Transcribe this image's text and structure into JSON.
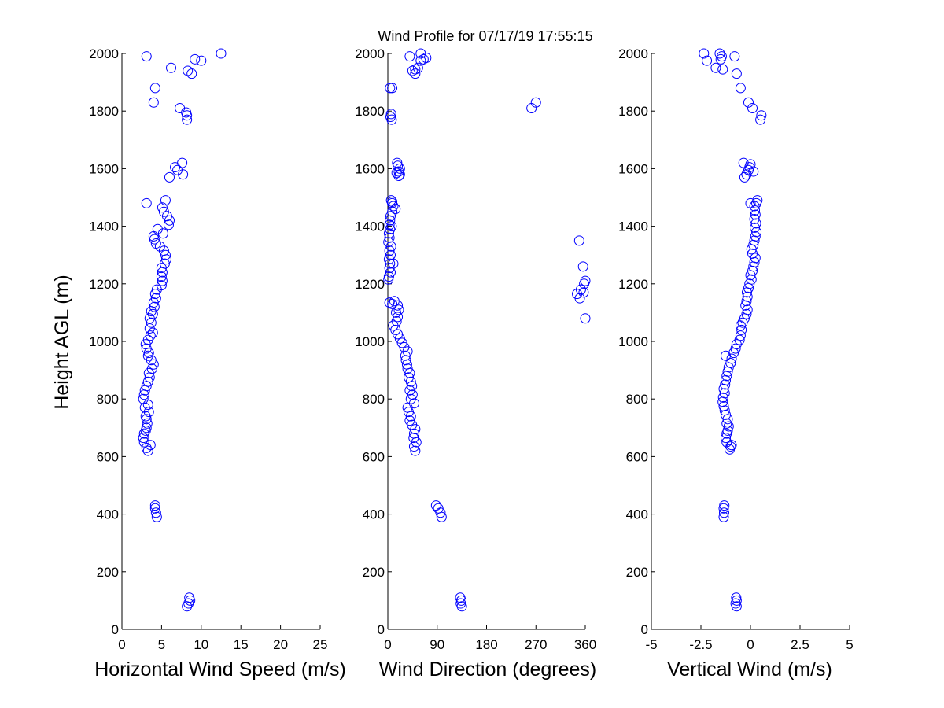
{
  "title": "Wind Profile for  07/17/19 17:55:15",
  "ylabel": "Height AGL (m)",
  "marker_color": "#0000ff",
  "chart_data": [
    {
      "type": "scatter",
      "id": "speed",
      "xlabel": "Horizontal Wind Speed (m/s)",
      "xlim": [
        0,
        25
      ],
      "ylim": [
        0,
        2000
      ],
      "xticks": [
        0,
        5,
        10,
        15,
        20,
        25
      ],
      "xtick_labels": [
        "0",
        "5",
        "10",
        "15",
        "20",
        "25"
      ],
      "yticks": [
        0,
        200,
        400,
        600,
        800,
        1000,
        1200,
        1400,
        1600,
        1800,
        2000
      ],
      "ytick_labels": [
        "0",
        "200",
        "400",
        "600",
        "800",
        "1000",
        "1200",
        "1400",
        "1600",
        "1800",
        "2000"
      ],
      "x": [
        8.2,
        8.4,
        8.6,
        8.5,
        4.4,
        4.3,
        4.2,
        4.2,
        3.3,
        3.1,
        3.6,
        2.8,
        2.7,
        2.8,
        3.0,
        3.1,
        3.2,
        3.1,
        3.0,
        3.4,
        2.9,
        3.3,
        2.7,
        2.8,
        2.9,
        3.1,
        3.3,
        3.5,
        3.4,
        3.8,
        4.0,
        3.7,
        3.3,
        3.4,
        3.1,
        3.0,
        3.3,
        3.6,
        3.9,
        3.5,
        3.7,
        3.5,
        3.9,
        3.7,
        4.1,
        4.0,
        4.3,
        4.2,
        4.4,
        5.0,
        5.1,
        5.0,
        5.1,
        5.0,
        5.4,
        5.6,
        5.5,
        5.3,
        4.8,
        4.3,
        4.1,
        4.0,
        4.5,
        5.2,
        5.9,
        6.0,
        5.7,
        5.3,
        5.1,
        5.5,
        3.1,
        6.0,
        7.7,
        7.0,
        6.7,
        7.6,
        8.2,
        8.2,
        8.1,
        7.3,
        4.0,
        4.2,
        8.3,
        6.2,
        8.8,
        10.0,
        9.2,
        3.1,
        12.5
      ],
      "y": [
        80,
        90,
        100,
        110,
        390,
        405,
        420,
        430,
        620,
        630,
        640,
        650,
        665,
        680,
        690,
        700,
        715,
        730,
        740,
        755,
        770,
        780,
        800,
        815,
        830,
        845,
        860,
        875,
        890,
        905,
        920,
        935,
        950,
        960,
        975,
        990,
        1005,
        1020,
        1030,
        1045,
        1065,
        1080,
        1095,
        1105,
        1120,
        1135,
        1150,
        1165,
        1180,
        1195,
        1210,
        1225,
        1240,
        1255,
        1270,
        1285,
        1300,
        1315,
        1330,
        1340,
        1355,
        1365,
        1390,
        1375,
        1405,
        1420,
        1435,
        1450,
        1465,
        1490,
        1480,
        1570,
        1580,
        1595,
        1605,
        1620,
        1770,
        1785,
        1795,
        1810,
        1830,
        1880,
        1940,
        1950,
        1930,
        1975,
        1980,
        1990,
        2000
      ]
    },
    {
      "type": "scatter",
      "id": "direction",
      "xlabel": "Wind Direction (degrees)",
      "xlim": [
        0,
        360
      ],
      "ylim": [
        0,
        2000
      ],
      "xticks": [
        0,
        90,
        180,
        270,
        360
      ],
      "xtick_labels": [
        "0",
        "90",
        "180",
        "270",
        "360"
      ],
      "yticks": [
        0,
        200,
        400,
        600,
        800,
        1000,
        1200,
        1400,
        1600,
        1800,
        2000
      ],
      "ytick_labels": [
        "0",
        "200",
        "400",
        "600",
        "800",
        "1000",
        "1200",
        "1400",
        "1600",
        "1800",
        "2000"
      ],
      "x": [
        135,
        133,
        134,
        132,
        98,
        96,
        92,
        88,
        50,
        48,
        52,
        47,
        48,
        50,
        44,
        40,
        42,
        38,
        36,
        48,
        42,
        45,
        40,
        44,
        42,
        38,
        40,
        36,
        35,
        33,
        32,
        36,
        30,
        26,
        22,
        18,
        14,
        10,
        16,
        18,
        15,
        20,
        18,
        12,
        8,
        3,
        1,
        2,
        5,
        3,
        4,
        2,
        5,
        3,
        6,
        1,
        3,
        2,
        4,
        3,
        4,
        5,
        8,
        14,
        10,
        8,
        6,
        7,
        10,
        8,
        20,
        20,
        22,
        18,
        17,
        22,
        7,
        5,
        6,
        4,
        8,
        16,
        360,
        350,
        345,
        352,
        358,
        360,
        356,
        349,
        357,
        262,
        270,
        40,
        45,
        50,
        55,
        60,
        65,
        70,
        60,
        50
      ],
      "y": [
        80,
        90,
        100,
        110,
        390,
        405,
        420,
        430,
        620,
        635,
        650,
        665,
        680,
        695,
        710,
        725,
        740,
        755,
        770,
        785,
        800,
        815,
        830,
        845,
        860,
        875,
        890,
        905,
        920,
        935,
        950,
        965,
        980,
        995,
        1010,
        1025,
        1040,
        1055,
        1070,
        1085,
        1100,
        1110,
        1125,
        1140,
        1130,
        1135,
        1215,
        1225,
        1240,
        1255,
        1270,
        1285,
        1300,
        1315,
        1330,
        1345,
        1360,
        1375,
        1390,
        1405,
        1420,
        1435,
        1450,
        1460,
        1470,
        1480,
        1490,
        1400,
        1270,
        1485,
        1575,
        1590,
        1600,
        1610,
        1620,
        1580,
        1770,
        1780,
        1790,
        1880,
        1880,
        1585,
        1080,
        1150,
        1165,
        1180,
        1200,
        1210,
        1260,
        1350,
        1170,
        1810,
        1830,
        1990,
        1940,
        1930,
        1950,
        1975,
        1980,
        1985,
        2000,
        1945
      ]
    },
    {
      "type": "scatter",
      "id": "vertical",
      "xlabel": "Vertical Wind (m/s)",
      "xlim": [
        -5,
        5
      ],
      "ylim": [
        0,
        2000
      ],
      "xticks": [
        -5,
        -2.5,
        0,
        2.5,
        5
      ],
      "xtick_labels": [
        "-5",
        "-2.5",
        "0",
        "2.5",
        "5"
      ],
      "yticks": [
        0,
        200,
        400,
        600,
        800,
        1000,
        1200,
        1400,
        1600,
        1800,
        2000
      ],
      "ytick_labels": [
        "0",
        "200",
        "400",
        "600",
        "800",
        "1000",
        "1200",
        "1400",
        "1600",
        "1800",
        "2000"
      ],
      "x": [
        -0.7,
        -0.75,
        -0.7,
        -0.72,
        -1.35,
        -1.33,
        -1.35,
        -1.32,
        -1.05,
        -1.0,
        -0.95,
        -1.2,
        -1.25,
        -1.2,
        -1.15,
        -1.1,
        -1.2,
        -1.15,
        -1.25,
        -1.3,
        -1.35,
        -1.4,
        -1.38,
        -1.3,
        -1.35,
        -1.28,
        -1.25,
        -1.2,
        -1.15,
        -1.1,
        -1.0,
        -0.95,
        -1.25,
        -0.85,
        -0.75,
        -0.7,
        -0.55,
        -0.5,
        -0.45,
        -0.5,
        -0.4,
        -0.3,
        -0.2,
        -0.15,
        -0.25,
        -0.2,
        -0.15,
        -0.18,
        -0.1,
        -0.05,
        0.05,
        0.0,
        0.1,
        0.15,
        0.2,
        0.25,
        0.1,
        0.05,
        0.15,
        0.2,
        0.25,
        0.3,
        0.22,
        0.28,
        0.2,
        0.25,
        0.22,
        0.2,
        0.3,
        0.35,
        0.0,
        -0.3,
        -0.2,
        -0.1,
        -0.05,
        0.0,
        0.15,
        -0.35,
        0.5,
        0.55,
        0.1,
        -0.1,
        -0.5,
        -0.7,
        -1.4,
        -1.75,
        -2.2,
        -1.5,
        -1.45,
        -1.55,
        -0.8,
        -2.35
      ],
      "y": [
        80,
        90,
        100,
        110,
        390,
        405,
        420,
        430,
        625,
        635,
        640,
        650,
        665,
        680,
        690,
        705,
        715,
        730,
        745,
        760,
        775,
        790,
        805,
        820,
        835,
        850,
        865,
        880,
        895,
        910,
        925,
        940,
        950,
        960,
        975,
        990,
        1005,
        1020,
        1040,
        1055,
        1065,
        1080,
        1095,
        1110,
        1125,
        1140,
        1155,
        1170,
        1185,
        1200,
        1215,
        1230,
        1245,
        1260,
        1275,
        1290,
        1305,
        1320,
        1335,
        1350,
        1365,
        1380,
        1395,
        1410,
        1425,
        1440,
        1455,
        1470,
        1480,
        1490,
        1480,
        1570,
        1580,
        1595,
        1605,
        1615,
        1590,
        1620,
        1770,
        1785,
        1810,
        1830,
        1880,
        1930,
        1945,
        1950,
        1975,
        1980,
        1990,
        2000,
        1990,
        2000
      ]
    }
  ]
}
